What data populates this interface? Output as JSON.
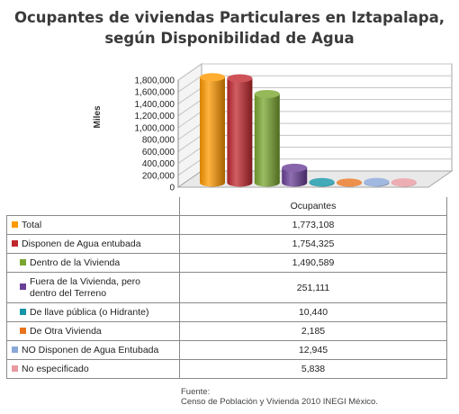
{
  "chart_data": {
    "type": "bar",
    "title": "Ocupantes de viviendas Particulares en Iztapalapa, según Disponibilidad de Agua",
    "title_lines": [
      "Ocupantes de viviendas Particulares en Iztapalapa,",
      "según Disponibilidad  de Agua"
    ],
    "ylabel": "Miles",
    "ylim": [
      0,
      1800000
    ],
    "yticks": [
      0,
      200000,
      400000,
      600000,
      800000,
      1000000,
      1200000,
      1400000,
      1600000,
      1800000
    ],
    "ytick_labels": [
      "0",
      "200,000",
      "400,000",
      "600,000",
      "800,000",
      "1,000,000",
      "1,200,000",
      "1,400,000",
      "1,600,000",
      "1,800,000"
    ],
    "grid": true,
    "column_header": "Ocupantes",
    "series": [
      {
        "name": "Total",
        "value": 1773108,
        "display": "1,773,108",
        "color": "#ff9900"
      },
      {
        "name": "Disponen de Agua entubada",
        "value": 1754325,
        "display": "1,754,325",
        "color": "#c0282e"
      },
      {
        "name": "Dentro de la Vivienda",
        "value": 1490589,
        "display": "1,490,589",
        "color": "#7aa630"
      },
      {
        "name": "Fuera de la Vivienda, pero dentro del Terreno",
        "name_lines": [
          "Fuera de la Vivienda, pero",
          "dentro del Terreno"
        ],
        "value": 251111,
        "display": "251,111",
        "color": "#6a3f96"
      },
      {
        "name": "De llave pública (o Hidrante)",
        "value": 10440,
        "display": "10,440",
        "color": "#1495a8"
      },
      {
        "name": "De Otra Vivienda",
        "value": 2185,
        "display": "2,185",
        "color": "#e8741e"
      },
      {
        "name": "NO Disponen de Agua Entubada",
        "value": 12945,
        "display": "12,945",
        "color": "#8aa8d8"
      },
      {
        "name": "No especificado",
        "value": 5838,
        "display": "5,838",
        "color": "#e89aa0"
      }
    ]
  },
  "source": {
    "label": "Fuente:",
    "text": "Censo de Población y Vivienda 2010 INEGI México."
  }
}
